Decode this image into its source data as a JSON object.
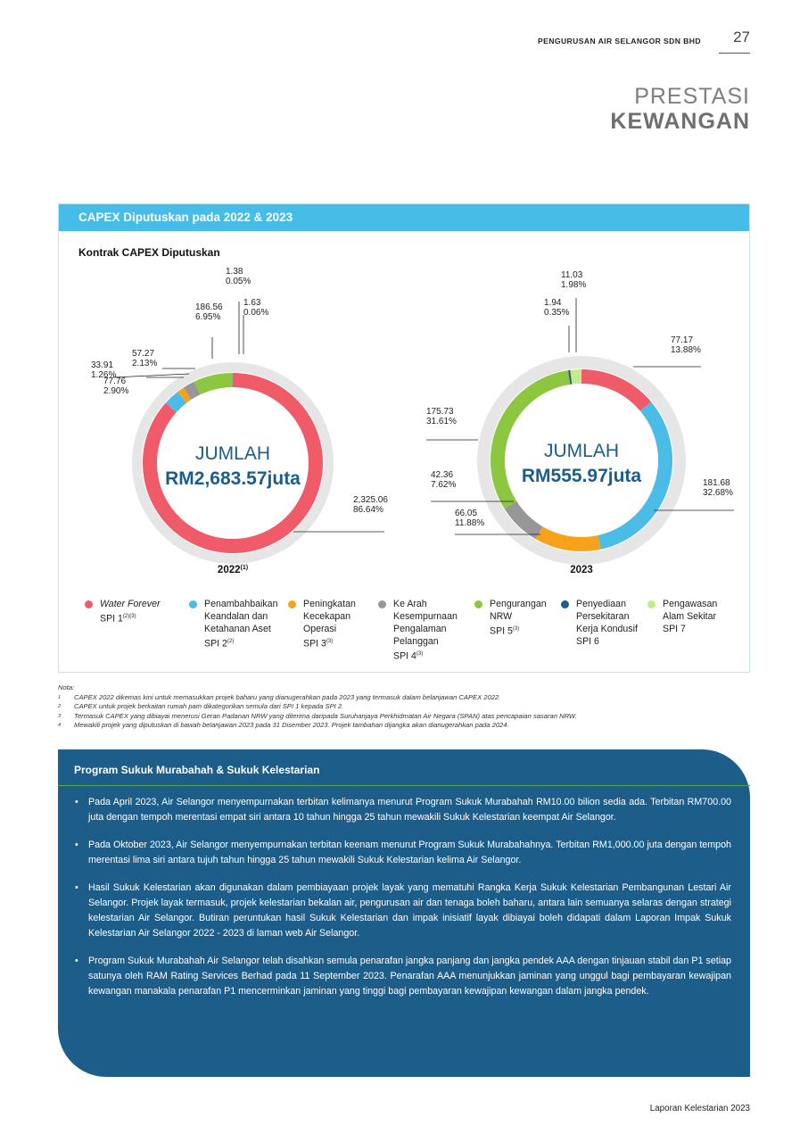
{
  "header": {
    "company": "PENGURUSAN AIR SELANGOR SDN BHD",
    "page_number": "27"
  },
  "title": {
    "line1": "PRESTASI",
    "line2": "KEWANGAN"
  },
  "panel": {
    "heading": "CAPEX Diputuskan pada 2022 & 2023",
    "subheading": "Kontrak CAPEX Diputuskan"
  },
  "colors": {
    "spi1": "#ef5b68",
    "spi2": "#4bbce6",
    "spi3": "#f7a21b",
    "spi4": "#979797",
    "spi5": "#8dc73f",
    "spi6": "#1d5d8a",
    "spi7": "#c3eb8c",
    "header_blue": "#46bde8",
    "total_text": "#1d5d8a",
    "ring_bg": "#e6e6e6",
    "sukuk_bg": "#1d5d8a"
  },
  "chart_data": [
    {
      "type": "pie",
      "subtype": "donut",
      "title": "2022",
      "title_sup": "(1)",
      "center_label": "JUMLAH",
      "center_value": "RM2,683.57juta",
      "categories": [
        "SPI 1",
        "SPI 2",
        "SPI 3",
        "SPI 4",
        "SPI 5",
        "SPI 6",
        "SPI 7"
      ],
      "values": [
        2325.06,
        77.76,
        33.91,
        57.27,
        186.56,
        1.38,
        1.63
      ],
      "value_labels": [
        "2,325.06",
        "77.76",
        "33.91",
        "57.27",
        "186.56",
        "1.38",
        "1.63"
      ],
      "percent_labels": [
        "86.64%",
        "2.90%",
        "1.26%",
        "2.13%",
        "6.95%",
        "0.05%",
        "0.06%"
      ]
    },
    {
      "type": "pie",
      "subtype": "donut",
      "title": "2023",
      "center_label": "JUMLAH",
      "center_value": "RM555.97juta",
      "categories": [
        "SPI 1",
        "SPI 2",
        "SPI 3",
        "SPI 4",
        "SPI 5",
        "SPI 6",
        "SPI 7"
      ],
      "values": [
        77.17,
        181.68,
        66.05,
        42.36,
        175.73,
        1.94,
        11.03
      ],
      "value_labels": [
        "77.17",
        "181.68",
        "66.05",
        "42.36",
        "175.73",
        "1.94",
        "11.03"
      ],
      "percent_labels": [
        "13.88%",
        "32.68%",
        "11.88%",
        "7.62%",
        "31.61%",
        "0.35%",
        "1.98%"
      ]
    }
  ],
  "legend": [
    {
      "name": "Water Forever",
      "spi": "SPI 1",
      "sup": "(2)(3)",
      "italic_name": true
    },
    {
      "name": "Penambahbaikan\nKeandalan dan\nKetahanan Aset",
      "spi": "SPI 2",
      "sup": "(2)"
    },
    {
      "name": "Peningkatan\nKecekapan\nOperasi",
      "spi": "SPI 3",
      "sup": "(3)"
    },
    {
      "name": "Ke Arah\nKesempurnaan\nPengalaman\nPelanggan",
      "spi": "SPI 4",
      "sup": "(3)"
    },
    {
      "name": "Pengurangan\nNRW",
      "spi": "SPI 5",
      "sup": "(3)"
    },
    {
      "name": "Penyediaan\nPersekitaran\nKerja Kondusif",
      "spi": "SPI 6",
      "sup": ""
    },
    {
      "name": "Pengawasan\nAlam Sekitar",
      "spi": "SPI 7",
      "sup": ""
    }
  ],
  "notes": {
    "label": "Nota:",
    "items": [
      {
        "num": "1",
        "text": "CAPEX 2022 dikemas kini untuk memasukkan projek baharu yang dianugerahkan pada 2023 yang termasuk dalam belanjawan CAPEX 2022."
      },
      {
        "num": "2",
        "text": "CAPEX untuk projek berkaitan rumah pam dikategorikan semula dari SPI 1 kepada SPI 2."
      },
      {
        "num": "3",
        "text": "Termasuk CAPEX yang dibiayai menerusi Geran Padanan NRW yang diterima daripada Suruhanjaya Perkhidmatan Air Negara (SPAN) atas pencapaian sasaran NRW."
      },
      {
        "num": "4",
        "text": "Mewakili projek yang diputuskan di bawah belanjawan 2023 pada 31 Disember 2023. Projek tambahan dijangka akan dianugerahkan pada 2024."
      }
    ]
  },
  "sukuk": {
    "title": "Program Sukuk Murabahah & Sukuk Kelestarian",
    "bullets": [
      "Pada April 2023, Air Selangor menyempurnakan terbitan kelimanya menurut Program Sukuk Murabahah RM10.00 bilion sedia ada. Terbitan RM700.00 juta dengan tempoh merentasi empat siri antara 10 tahun hingga 25 tahun mewakili Sukuk Kelestarian keempat Air Selangor.",
      "Pada Oktober 2023, Air Selangor menyempurnakan terbitan keenam menurut Program Sukuk Murabahahnya. Terbitan RM1,000.00 juta dengan tempoh merentasi lima siri antara tujuh tahun hingga 25 tahun mewakili Sukuk Kelestarian kelima Air Selangor.",
      "Hasil Sukuk Kelestarian akan digunakan dalam pembiayaan projek layak yang mematuhi Rangka Kerja Sukuk Kelestarian Pembangunan Lestari Air Selangor. Projek layak termasuk, projek kelestarian bekalan air, pengurusan air dan tenaga boleh baharu, antara lain semuanya selaras dengan strategi kelestarian Air Selangor. Butiran peruntukan hasil Sukuk Kelestarian dan impak inisiatif layak dibiayai boleh didapati dalam Laporan Impak Sukuk Kelestarian Air Selangor 2022 - 2023 di laman web Air Selangor.",
      "Program Sukuk Murabahah Air Selangor telah disahkan semula penarafan jangka panjang dan jangka pendek AAA dengan tinjauan stabil dan P1 setiap satunya oleh RAM Rating Services Berhad pada 11 September 2023. Penarafan AAA menunjukkan jaminan yang unggul bagi pembayaran kewajipan kewangan manakala penarafan P1 mencerminkan jaminan yang tinggi bagi pembayaran kewajipan kewangan dalam jangka pendek."
    ]
  },
  "footer": {
    "text": "Laporan Kelestarian 2023"
  }
}
